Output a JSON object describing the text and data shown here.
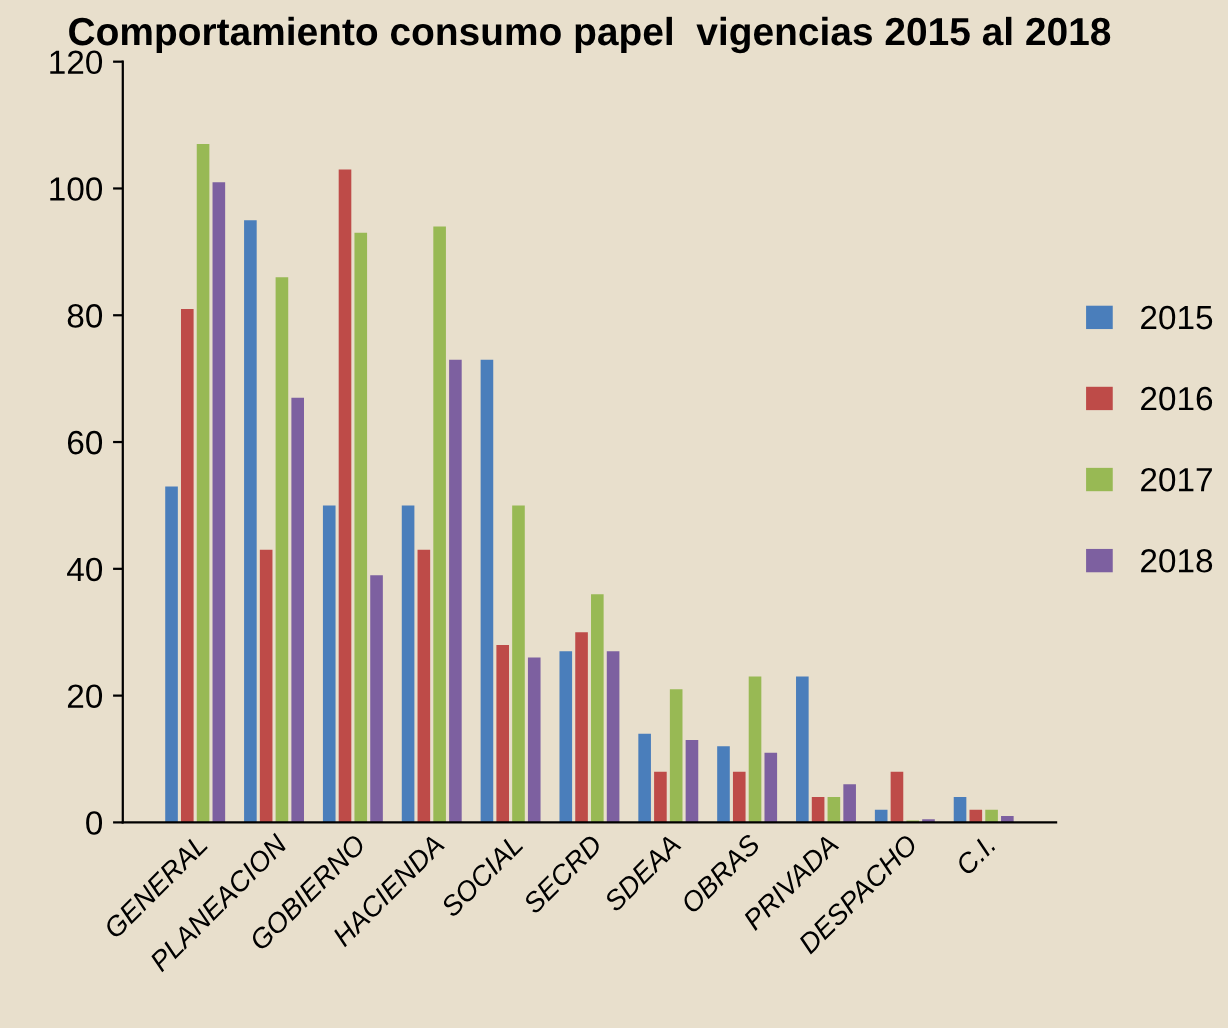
{
  "chart_data": {
    "type": "bar",
    "title": "Comportamiento consumo papel  vigencias 2015 al 2018",
    "categories": [
      "GENERAL",
      "PLANEACION",
      "GOBIERNO",
      "HACIENDA",
      "SOCIAL",
      "SECRD",
      "SDEAA",
      "OBRAS",
      "PRIVADA",
      "DESPACHO",
      "C.I."
    ],
    "series": [
      {
        "name": "2015",
        "color": "#4a7ebb",
        "values": [
          53,
          95,
          50,
          50,
          73,
          27,
          14,
          12,
          23,
          2,
          4
        ]
      },
      {
        "name": "2016",
        "color": "#be4b48",
        "values": [
          81,
          43,
          103,
          43,
          28,
          30,
          8,
          8,
          4,
          8,
          2
        ]
      },
      {
        "name": "2017",
        "color": "#98b954",
        "values": [
          107,
          86,
          93,
          94,
          50,
          36,
          21,
          23,
          4,
          0.3,
          2
        ]
      },
      {
        "name": "2018",
        "color": "#7d60a0",
        "values": [
          101,
          67,
          39,
          73,
          26,
          27,
          13,
          11,
          6,
          0.5,
          1
        ]
      }
    ],
    "ylim": [
      0,
      120
    ],
    "yticks": [
      0,
      20,
      40,
      60,
      80,
      100,
      120
    ],
    "grid": false,
    "legend": "right"
  }
}
